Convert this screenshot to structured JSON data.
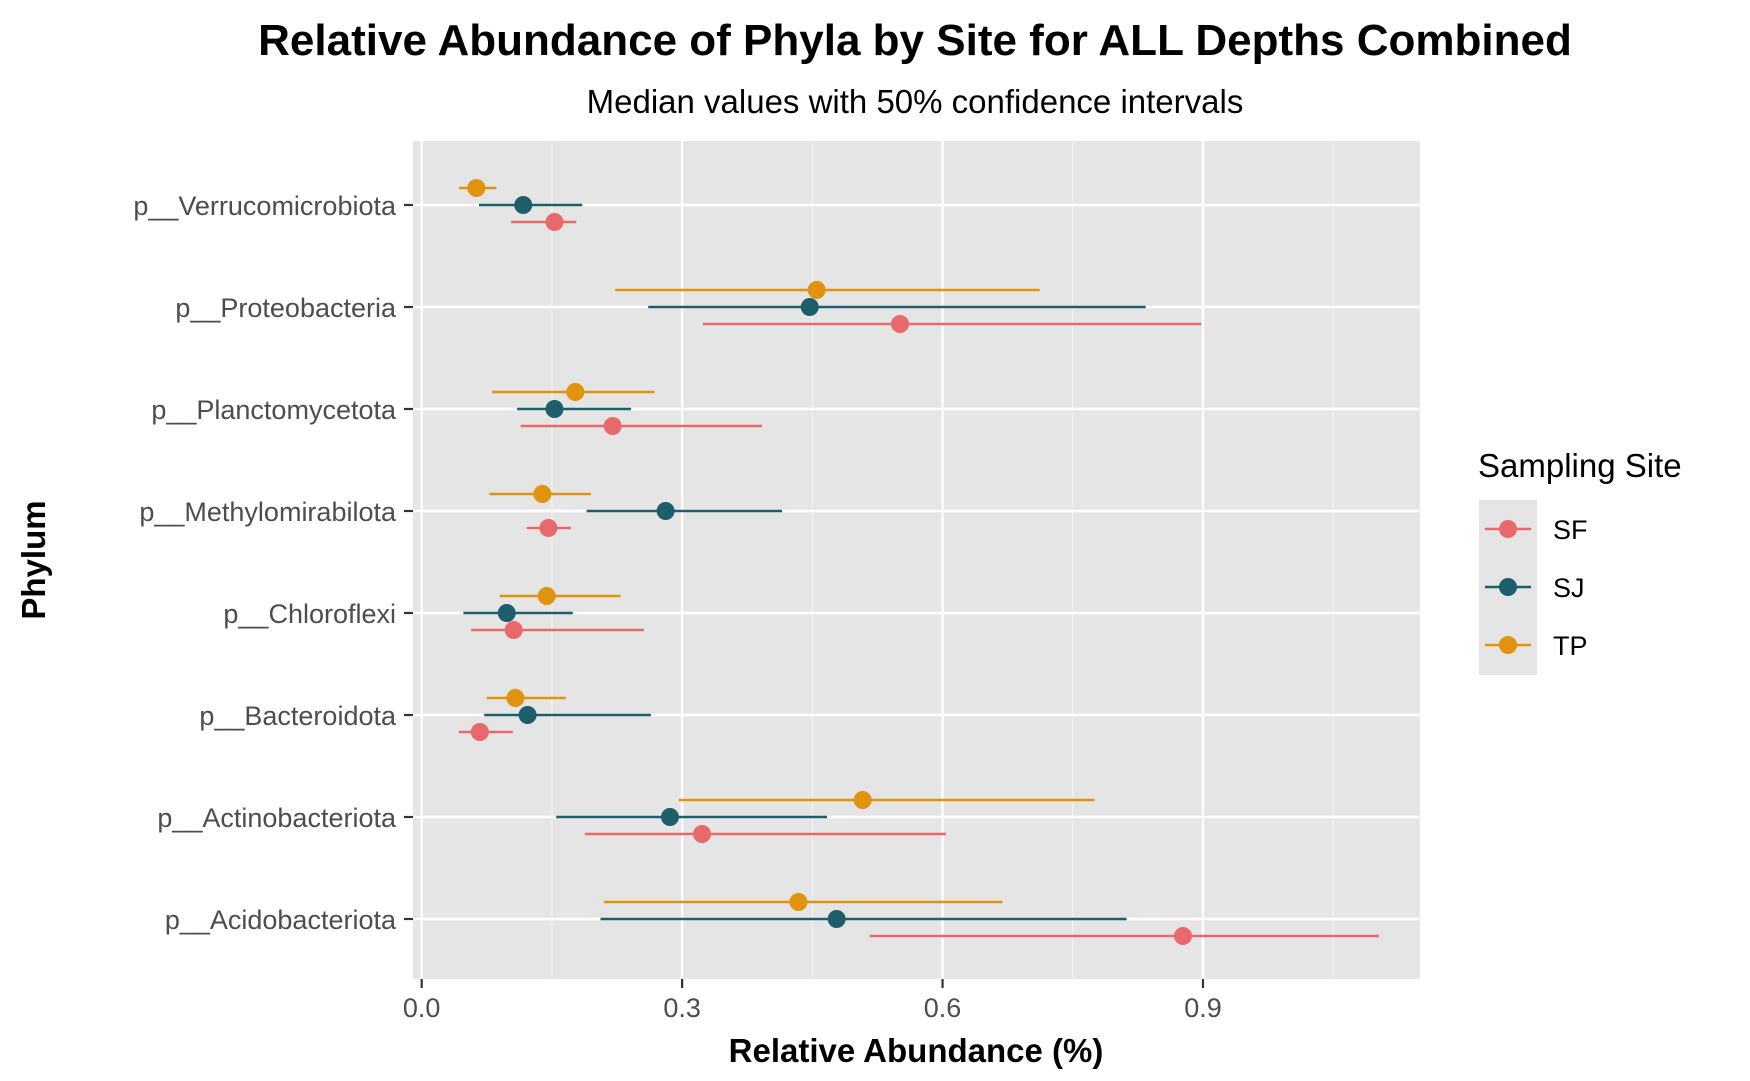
{
  "chart_data": {
    "type": "dot-interval",
    "title": "Relative Abundance of Phyla by Site for ALL Depths Combined",
    "subtitle": "Median values with 50% confidence intervals",
    "xlabel": "Relative Abundance (%)",
    "ylabel": "Phylum",
    "xlim": [
      -0.01,
      1.15
    ],
    "x_ticks": [
      0.0,
      0.3,
      0.6,
      0.9
    ],
    "x_tick_labels": [
      "0.0",
      "0.3",
      "0.6",
      "0.9"
    ],
    "grid": true,
    "legend_position": "right",
    "legend_title": "Sampling Site",
    "categories": [
      "p__Acidobacteriota",
      "p__Actinobacteriota",
      "p__Bacteroidota",
      "p__Chloroflexi",
      "p__Methylomirabilota",
      "p__Planctomycetota",
      "p__Proteobacteria",
      "p__Verrucomicrobiota"
    ],
    "series": [
      {
        "name": "SF",
        "color": "#E8696C",
        "points": [
          {
            "median": 0.877,
            "low": 0.516,
            "high": 1.103
          },
          {
            "median": 0.323,
            "low": 0.188,
            "high": 0.604
          },
          {
            "median": 0.067,
            "low": 0.043,
            "high": 0.105
          },
          {
            "median": 0.106,
            "low": 0.057,
            "high": 0.256
          },
          {
            "median": 0.146,
            "low": 0.121,
            "high": 0.172
          },
          {
            "median": 0.22,
            "low": 0.114,
            "high": 0.392
          },
          {
            "median": 0.551,
            "low": 0.324,
            "high": 0.898
          },
          {
            "median": 0.153,
            "low": 0.103,
            "high": 0.178
          }
        ]
      },
      {
        "name": "SJ",
        "color": "#1D5E6A",
        "points": [
          {
            "median": 0.478,
            "low": 0.206,
            "high": 0.812
          },
          {
            "median": 0.286,
            "low": 0.155,
            "high": 0.467
          },
          {
            "median": 0.122,
            "low": 0.072,
            "high": 0.264
          },
          {
            "median": 0.098,
            "low": 0.048,
            "high": 0.174
          },
          {
            "median": 0.281,
            "low": 0.19,
            "high": 0.415
          },
          {
            "median": 0.153,
            "low": 0.11,
            "high": 0.241
          },
          {
            "median": 0.447,
            "low": 0.261,
            "high": 0.834
          },
          {
            "median": 0.117,
            "low": 0.066,
            "high": 0.185
          }
        ]
      },
      {
        "name": "TP",
        "color": "#E0930E",
        "points": [
          {
            "median": 0.434,
            "low": 0.21,
            "high": 0.669
          },
          {
            "median": 0.508,
            "low": 0.296,
            "high": 0.775
          },
          {
            "median": 0.108,
            "low": 0.075,
            "high": 0.166
          },
          {
            "median": 0.144,
            "low": 0.09,
            "high": 0.229
          },
          {
            "median": 0.139,
            "low": 0.078,
            "high": 0.195
          },
          {
            "median": 0.177,
            "low": 0.081,
            "high": 0.268
          },
          {
            "median": 0.455,
            "low": 0.223,
            "high": 0.712
          },
          {
            "median": 0.063,
            "low": 0.043,
            "high": 0.086
          }
        ]
      }
    ]
  }
}
